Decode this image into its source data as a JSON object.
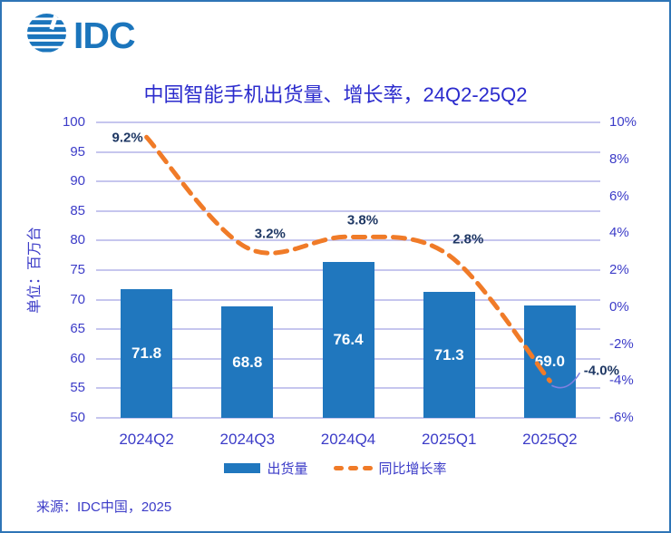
{
  "page": {
    "logo_text": "IDC",
    "source_note": "来源：IDC中国，2025"
  },
  "colors": {
    "bar": "#2077BE",
    "line": "#F07B28",
    "axis_text": "#3C3CC8",
    "title_text": "#2B2BCD",
    "data_label": "#1F3864",
    "bar_label": "#FFFFFF",
    "grid": "#C6C6EE",
    "border": "#2E75B6",
    "logo": "#1B75BC",
    "leader": "#8080E0"
  },
  "chart_data": {
    "type": "bar",
    "combo": "bar+line",
    "title": "中国智能手机出货量、增长率，24Q2-25Q2",
    "categories": [
      "2024Q2",
      "2024Q3",
      "2024Q4",
      "2025Q1",
      "2025Q2"
    ],
    "series": [
      {
        "name": "出货量",
        "type": "bar",
        "axis": "left",
        "values": [
          71.8,
          68.8,
          76.4,
          71.3,
          69.0
        ],
        "labels": [
          "71.8",
          "68.8",
          "76.4",
          "71.3",
          "69.0"
        ],
        "color": "#2077BE"
      },
      {
        "name": "同比增长率",
        "type": "line",
        "axis": "right",
        "style": "dashed",
        "values": [
          9.2,
          3.2,
          3.8,
          2.8,
          -4.0
        ],
        "labels": [
          "9.2%",
          "3.2%",
          "3.8%",
          "2.8%",
          "-4.0%"
        ],
        "color": "#F07B28"
      }
    ],
    "left_axis": {
      "title": "单位：百万台",
      "min": 50,
      "max": 100,
      "step": 5,
      "tick_labels": [
        "100",
        "95",
        "90",
        "85",
        "80",
        "75",
        "70",
        "65",
        "60",
        "55",
        "50"
      ]
    },
    "right_axis": {
      "min": -6,
      "max": 10,
      "step": 2,
      "tick_labels": [
        "10%",
        "8%",
        "6%",
        "4%",
        "2%",
        "0%",
        "-2%",
        "-4%",
        "-6%"
      ]
    },
    "grid": true,
    "legend_position": "bottom",
    "legend": [
      {
        "label": "出货量",
        "swatch": "bar"
      },
      {
        "label": "同比增长率",
        "swatch": "dashed-line"
      }
    ]
  }
}
